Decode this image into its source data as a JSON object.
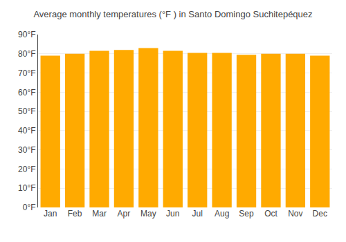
{
  "chart_data": {
    "type": "bar",
    "title": "Average monthly temperatures (°F ) in Santo Domingo Suchitepéquez",
    "categories": [
      "Jan",
      "Feb",
      "Mar",
      "Apr",
      "May",
      "Jun",
      "Jul",
      "Aug",
      "Sep",
      "Oct",
      "Nov",
      "Dec"
    ],
    "values": [
      79,
      80,
      81.5,
      82,
      83,
      81.5,
      80.5,
      80.5,
      79.5,
      80,
      80,
      79
    ],
    "color": "#FFAA00",
    "ylim": [
      0,
      90
    ],
    "yticks": [
      {
        "value": 0,
        "label": "0°F"
      },
      {
        "value": 10,
        "label": "10°F"
      },
      {
        "value": 20,
        "label": "20°F"
      },
      {
        "value": 30,
        "label": "30°F"
      },
      {
        "value": 40,
        "label": "40°F"
      },
      {
        "value": 50,
        "label": "50°F"
      },
      {
        "value": 60,
        "label": "60°F"
      },
      {
        "value": 70,
        "label": "70°F"
      },
      {
        "value": 80,
        "label": "80°F"
      },
      {
        "value": 90,
        "label": "90°F"
      }
    ],
    "grid": true
  }
}
